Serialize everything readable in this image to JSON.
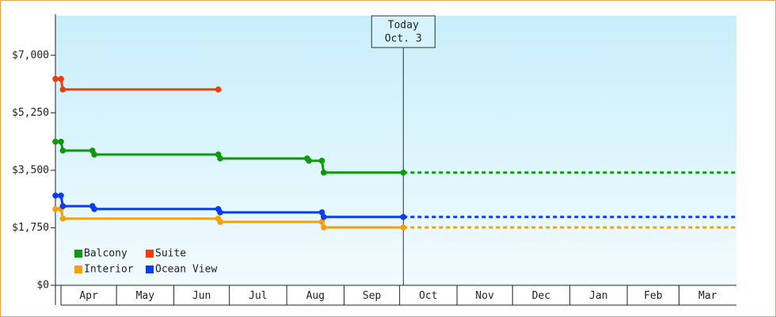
{
  "chart_data": {
    "type": "step-line",
    "series": [
      {
        "name": "Balcony",
        "color": "#0a9a0a",
        "x": [
          -3,
          0,
          1,
          17,
          18,
          85,
          86,
          133,
          134,
          141,
          142,
          185
        ],
        "values": [
          4370,
          4370,
          4100,
          4100,
          3980,
          3980,
          3860,
          3860,
          3790,
          3790,
          3430,
          3430
        ]
      },
      {
        "name": "Suite",
        "color": "#f03c0a",
        "x": [
          -3,
          0,
          1,
          85
        ],
        "values": [
          6280,
          6280,
          5960,
          5960
        ]
      },
      {
        "name": "Interior",
        "color": "#f5a00a",
        "x": [
          -3,
          0,
          1,
          85,
          86,
          141,
          142,
          185
        ],
        "values": [
          2320,
          2320,
          2030,
          2030,
          1930,
          1930,
          1760,
          1760
        ]
      },
      {
        "name": "Ocean View",
        "color": "#0a3cf0",
        "x": [
          -3,
          0,
          1,
          17,
          18,
          85,
          86,
          141,
          142,
          185
        ],
        "values": [
          2730,
          2730,
          2410,
          2410,
          2320,
          2320,
          2220,
          2220,
          2080,
          2080
        ]
      }
    ],
    "xlim": [
      -3,
      365
    ],
    "xticks": [
      {
        "value": 0,
        "label": "Apr"
      },
      {
        "value": 30,
        "label": "May"
      },
      {
        "value": 61,
        "label": "Jun"
      },
      {
        "value": 91,
        "label": "Jul"
      },
      {
        "value": 122,
        "label": "Aug"
      },
      {
        "value": 153,
        "label": "Sep"
      },
      {
        "value": 183,
        "label": "Oct"
      },
      {
        "value": 214,
        "label": "Nov"
      },
      {
        "value": 244,
        "label": "Dec"
      },
      {
        "value": 275,
        "label": "Jan"
      },
      {
        "value": 306,
        "label": "Feb"
      },
      {
        "value": 334,
        "label": "Mar"
      }
    ],
    "ylim": [
      0,
      8200
    ],
    "yticks": [
      {
        "value": 0,
        "label": "$0"
      },
      {
        "value": 1750,
        "label": "$1,750"
      },
      {
        "value": 3500,
        "label": "$3,500"
      },
      {
        "value": 5250,
        "label": "$5,250"
      },
      {
        "value": 7000,
        "label": "$7,000"
      }
    ],
    "today": {
      "x": 185,
      "title": "Today",
      "date": "Oct. 3"
    },
    "projection": true,
    "legend": "bottom-left"
  }
}
